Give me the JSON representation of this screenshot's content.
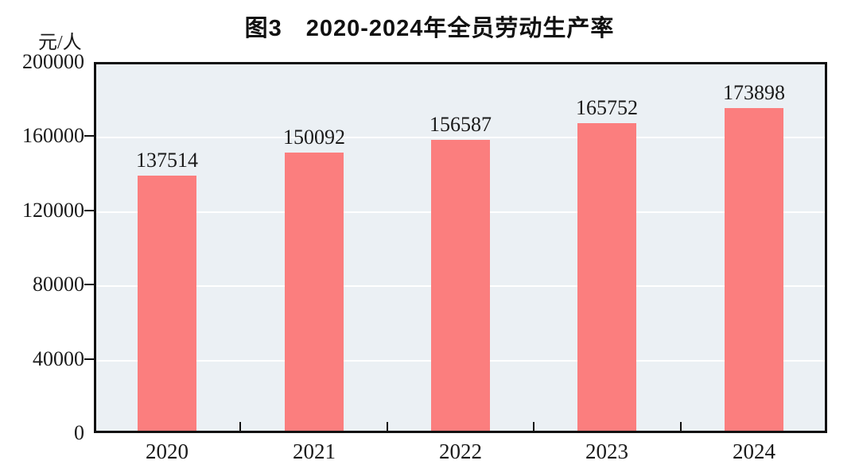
{
  "header": {
    "title": "图3　2020-2024年全员劳动生产率",
    "unit_label": "元/人"
  },
  "chart_data": {
    "type": "bar",
    "title": "图3 2020-2024年全员劳动生产率",
    "categories": [
      "2020",
      "2021",
      "2022",
      "2023",
      "2024"
    ],
    "values": [
      137514,
      150092,
      156587,
      165752,
      173898
    ],
    "value_labels": [
      "137514",
      "150092",
      "156587",
      "165752",
      "173898"
    ],
    "ylabel": "元/人",
    "ylim": [
      0,
      200000
    ],
    "yticks": [
      0,
      40000,
      80000,
      120000,
      160000,
      200000
    ],
    "ytick_labels": [
      "0",
      "40000",
      "80000",
      "120000",
      "160000",
      "200000"
    ],
    "grid": true,
    "legend": "none",
    "colors": {
      "bar": "#fb7e7e",
      "plot_background": "#ebf0f4",
      "gridline": "#ffffff",
      "axis": "#111111",
      "text": "#1a1a1a"
    }
  }
}
